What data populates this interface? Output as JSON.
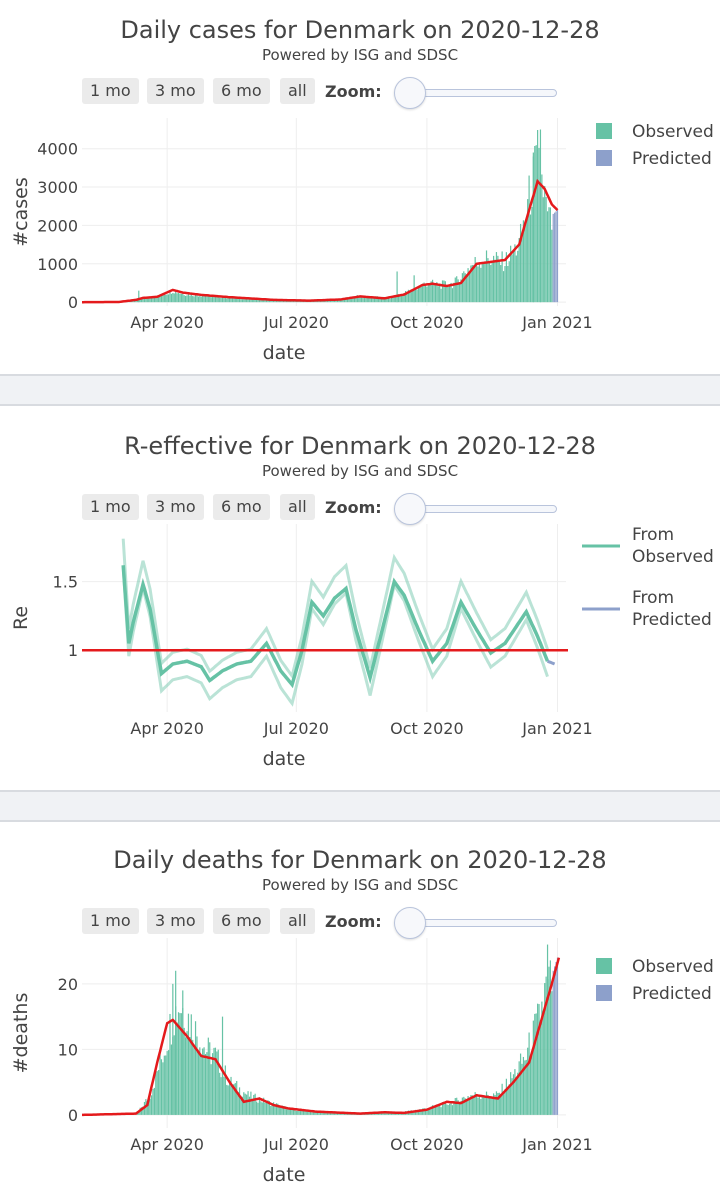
{
  "controls": {
    "buttons": [
      "1 mo",
      "3 mo",
      "6 mo",
      "all"
    ],
    "zoom_label": "Zoom:"
  },
  "colors": {
    "observed": "#66c2a5",
    "predicted": "#8da0cb",
    "fit_line": "#e41a1c",
    "grid": "#eeeeee",
    "text": "#444444"
  },
  "chart_data": [
    {
      "type": "bar",
      "title": "Daily cases for Denmark on 2020-12-28",
      "subtitle": "Powered by ISG and SDSC",
      "xlabel": "date",
      "ylabel": "#cases",
      "x_ticks": [
        "Apr 2020",
        "Jul 2020",
        "Oct 2020",
        "Jan 2021"
      ],
      "x_range": [
        "2020-02-01",
        "2021-01-07"
      ],
      "y_ticks": [
        0,
        1000,
        2000,
        3000,
        4000
      ],
      "ylim": [
        -100,
        4800
      ],
      "legend": [
        "Observed",
        "Predicted"
      ],
      "observed_keypoints": [
        [
          "2020-02-01",
          0
        ],
        [
          "2020-02-27",
          5
        ],
        [
          "2020-03-10",
          60
        ],
        [
          "2020-03-15",
          120
        ],
        [
          "2020-03-25",
          140
        ],
        [
          "2020-04-05",
          300
        ],
        [
          "2020-04-12",
          220
        ],
        [
          "2020-04-25",
          180
        ],
        [
          "2020-05-15",
          120
        ],
        [
          "2020-06-10",
          60
        ],
        [
          "2020-07-10",
          40
        ],
        [
          "2020-08-01",
          80
        ],
        [
          "2020-08-12",
          150
        ],
        [
          "2020-08-25",
          130
        ],
        [
          "2020-09-05",
          110
        ],
        [
          "2020-09-20",
          300
        ],
        [
          "2020-10-01",
          500
        ],
        [
          "2020-10-10",
          450
        ],
        [
          "2020-10-20",
          480
        ],
        [
          "2020-11-01",
          950
        ],
        [
          "2020-11-10",
          1150
        ],
        [
          "2020-11-25",
          1050
        ],
        [
          "2020-12-05",
          1500
        ],
        [
          "2020-12-15",
          3200
        ],
        [
          "2020-12-18",
          3700
        ],
        [
          "2020-12-22",
          3000
        ],
        [
          "2020-12-25",
          2200
        ],
        [
          "2020-12-28",
          2000
        ]
      ],
      "observed_spikes": [
        [
          "2020-03-12",
          300
        ],
        [
          "2020-09-10",
          800
        ],
        [
          "2020-09-22",
          700
        ],
        [
          "2020-12-20",
          4500
        ],
        [
          "2020-12-15",
          3900
        ]
      ],
      "predicted_keypoints": [
        [
          "2020-12-29",
          2300
        ],
        [
          "2021-01-01",
          2400
        ]
      ],
      "fit_line": [
        [
          "2020-02-01",
          0
        ],
        [
          "2020-02-27",
          5
        ],
        [
          "2020-03-10",
          60
        ],
        [
          "2020-03-15",
          110
        ],
        [
          "2020-03-25",
          140
        ],
        [
          "2020-04-05",
          320
        ],
        [
          "2020-04-12",
          250
        ],
        [
          "2020-04-25",
          190
        ],
        [
          "2020-05-15",
          130
        ],
        [
          "2020-06-15",
          60
        ],
        [
          "2020-07-10",
          40
        ],
        [
          "2020-08-01",
          70
        ],
        [
          "2020-08-15",
          150
        ],
        [
          "2020-09-01",
          100
        ],
        [
          "2020-09-15",
          200
        ],
        [
          "2020-09-28",
          450
        ],
        [
          "2020-10-05",
          480
        ],
        [
          "2020-10-15",
          420
        ],
        [
          "2020-10-25",
          500
        ],
        [
          "2020-11-05",
          1000
        ],
        [
          "2020-11-15",
          1050
        ],
        [
          "2020-11-25",
          1100
        ],
        [
          "2020-12-05",
          1500
        ],
        [
          "2020-12-12",
          2400
        ],
        [
          "2020-12-18",
          3150
        ],
        [
          "2020-12-23",
          2950
        ],
        [
          "2020-12-28",
          2550
        ],
        [
          "2021-01-01",
          2400
        ]
      ]
    },
    {
      "type": "line",
      "title": "R-effective for Denmark on 2020-12-28",
      "subtitle": "Powered by ISG and SDSC",
      "xlabel": "date",
      "ylabel": "Re",
      "x_ticks": [
        "Apr 2020",
        "Jul 2020",
        "Oct 2020",
        "Jan 2021"
      ],
      "x_range": [
        "2020-02-01",
        "2021-01-07"
      ],
      "y_ticks": [
        1,
        1.5
      ],
      "ylim": [
        0.55,
        1.92
      ],
      "legend": [
        "From Observed",
        "From Predicted"
      ],
      "reference_line": 1,
      "series": [
        {
          "name": "From Observed",
          "points": [
            [
              "2020-03-01",
              1.62
            ],
            [
              "2020-03-05",
              1.05
            ],
            [
              "2020-03-08",
              1.2
            ],
            [
              "2020-03-15",
              1.48
            ],
            [
              "2020-03-20",
              1.3
            ],
            [
              "2020-03-28",
              0.83
            ],
            [
              "2020-04-05",
              0.9
            ],
            [
              "2020-04-15",
              0.92
            ],
            [
              "2020-04-25",
              0.88
            ],
            [
              "2020-05-01",
              0.78
            ],
            [
              "2020-05-10",
              0.85
            ],
            [
              "2020-05-20",
              0.9
            ],
            [
              "2020-05-30",
              0.92
            ],
            [
              "2020-06-10",
              1.05
            ],
            [
              "2020-06-20",
              0.85
            ],
            [
              "2020-06-28",
              0.75
            ],
            [
              "2020-07-05",
              1.0
            ],
            [
              "2020-07-12",
              1.35
            ],
            [
              "2020-07-20",
              1.25
            ],
            [
              "2020-07-28",
              1.38
            ],
            [
              "2020-08-05",
              1.45
            ],
            [
              "2020-08-12",
              1.15
            ],
            [
              "2020-08-22",
              0.8
            ],
            [
              "2020-09-02",
              1.25
            ],
            [
              "2020-09-08",
              1.5
            ],
            [
              "2020-09-15",
              1.4
            ],
            [
              "2020-09-25",
              1.15
            ],
            [
              "2020-10-05",
              0.92
            ],
            [
              "2020-10-15",
              1.05
            ],
            [
              "2020-10-25",
              1.35
            ],
            [
              "2020-11-05",
              1.15
            ],
            [
              "2020-11-15",
              0.98
            ],
            [
              "2020-11-25",
              1.05
            ],
            [
              "2020-12-10",
              1.28
            ],
            [
              "2020-12-18",
              1.1
            ],
            [
              "2020-12-25",
              0.92
            ]
          ],
          "band_width": 0.1
        },
        {
          "name": "From Predicted",
          "points": [
            [
              "2020-12-25",
              0.92
            ],
            [
              "2020-12-30",
              0.9
            ]
          ]
        }
      ]
    },
    {
      "type": "bar",
      "title": "Daily deaths for Denmark on 2020-12-28",
      "subtitle": "Powered by ISG and SDSC",
      "xlabel": "date",
      "ylabel": "#deaths",
      "x_ticks": [
        "Apr 2020",
        "Jul 2020",
        "Oct 2020",
        "Jan 2021"
      ],
      "x_range": [
        "2020-02-01",
        "2021-01-07"
      ],
      "y_ticks": [
        0,
        10,
        20
      ],
      "ylim": [
        -2,
        27
      ],
      "legend": [
        "Observed",
        "Predicted"
      ],
      "observed_keypoints": [
        [
          "2020-02-01",
          0
        ],
        [
          "2020-03-10",
          0
        ],
        [
          "2020-03-20",
          3
        ],
        [
          "2020-03-30",
          10
        ],
        [
          "2020-04-05",
          15
        ],
        [
          "2020-04-10",
          17
        ],
        [
          "2020-04-18",
          14
        ],
        [
          "2020-04-28",
          10
        ],
        [
          "2020-05-05",
          9
        ],
        [
          "2020-05-15",
          5
        ],
        [
          "2020-05-28",
          3
        ],
        [
          "2020-06-10",
          2
        ],
        [
          "2020-06-25",
          1
        ],
        [
          "2020-07-10",
          0.5
        ],
        [
          "2020-08-10",
          0.3
        ],
        [
          "2020-09-10",
          0.3
        ],
        [
          "2020-10-01",
          1
        ],
        [
          "2020-10-20",
          2
        ],
        [
          "2020-11-01",
          3
        ],
        [
          "2020-11-20",
          3
        ],
        [
          "2020-12-01",
          6
        ],
        [
          "2020-12-10",
          9
        ],
        [
          "2020-12-18",
          14
        ],
        [
          "2020-12-24",
          19
        ],
        [
          "2020-12-28",
          20
        ]
      ],
      "observed_spikes": [
        [
          "2020-04-07",
          22
        ],
        [
          "2020-04-05",
          20
        ],
        [
          "2020-04-12",
          19
        ],
        [
          "2020-12-25",
          26
        ],
        [
          "2020-05-10",
          15
        ]
      ],
      "predicted_keypoints": [
        [
          "2020-12-29",
          22
        ],
        [
          "2021-01-01",
          24
        ]
      ],
      "fit_line": [
        [
          "2020-02-01",
          0
        ],
        [
          "2020-03-10",
          0.2
        ],
        [
          "2020-03-18",
          1.5
        ],
        [
          "2020-03-25",
          8
        ],
        [
          "2020-04-01",
          14
        ],
        [
          "2020-04-05",
          14.5
        ],
        [
          "2020-04-15",
          12
        ],
        [
          "2020-04-25",
          9
        ],
        [
          "2020-05-05",
          8.5
        ],
        [
          "2020-05-15",
          5
        ],
        [
          "2020-05-25",
          2
        ],
        [
          "2020-06-05",
          2.5
        ],
        [
          "2020-06-15",
          1.5
        ],
        [
          "2020-06-25",
          1
        ],
        [
          "2020-07-15",
          0.5
        ],
        [
          "2020-08-15",
          0.2
        ],
        [
          "2020-09-01",
          0.4
        ],
        [
          "2020-09-15",
          0.3
        ],
        [
          "2020-10-01",
          0.8
        ],
        [
          "2020-10-15",
          2
        ],
        [
          "2020-10-25",
          1.8
        ],
        [
          "2020-11-05",
          3
        ],
        [
          "2020-11-20",
          2.5
        ],
        [
          "2020-12-01",
          5
        ],
        [
          "2020-12-12",
          8
        ],
        [
          "2020-12-20",
          14
        ],
        [
          "2020-12-28",
          20
        ],
        [
          "2021-01-02",
          24
        ]
      ]
    }
  ]
}
